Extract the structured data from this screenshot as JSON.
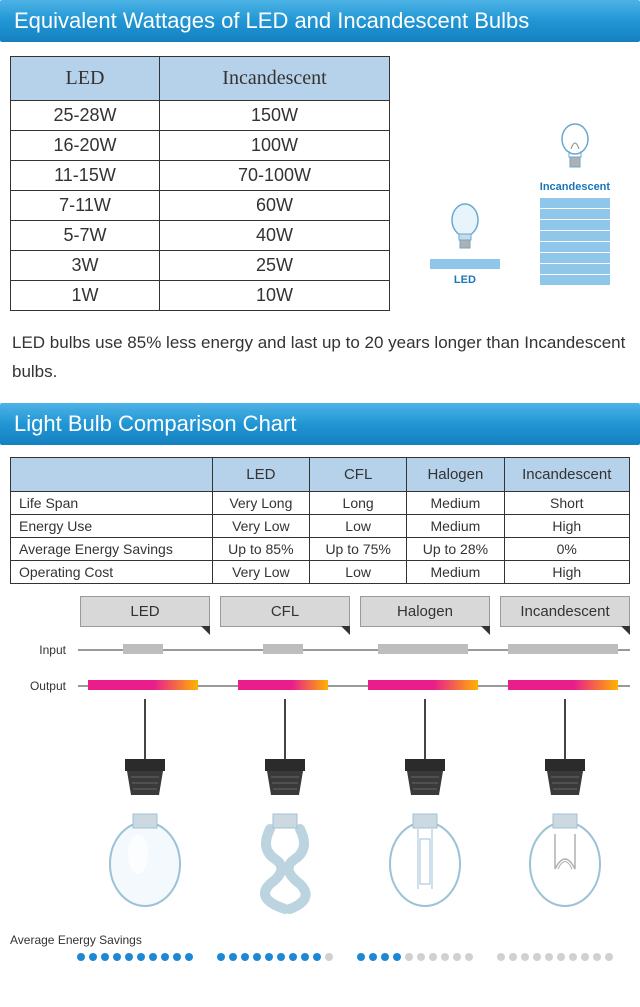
{
  "colors": {
    "header_gradient": [
      "#4db3e6",
      "#2196d4",
      "#1580c0"
    ],
    "th_bg": "#b6d2ea",
    "bar_seg": "#8fc7eb",
    "tab_bg": "#d8d8d8",
    "input_bar": "#bdbdbd",
    "output_gradient": [
      "#e91e8c",
      "#ffb300"
    ],
    "dot_on": "#1e88d4",
    "dot_off": "#d0d0d0"
  },
  "section1": {
    "title": "Equivalent Wattages of LED and Incandescent Bulbs",
    "table": {
      "columns": [
        "LED",
        "Incandescent"
      ],
      "rows": [
        [
          "25-28W",
          "150W"
        ],
        [
          "16-20W",
          "100W"
        ],
        [
          "11-15W",
          "70-100W"
        ],
        [
          "7-11W",
          "60W"
        ],
        [
          "5-7W",
          "40W"
        ],
        [
          "3W",
          "25W"
        ],
        [
          "1W",
          "10W"
        ]
      ]
    },
    "viz": {
      "led_label": "LED",
      "led_bars": 1,
      "incan_label": "Incandescent",
      "incan_bars": 8
    },
    "body_text": "LED bulbs use 85% less energy and last up to 20 years longer than Incandescent bulbs."
  },
  "section2": {
    "title": "Light Bulb Comparison Chart",
    "table": {
      "columns": [
        "",
        "LED",
        "CFL",
        "Halogen",
        "Incandescent"
      ],
      "rows": [
        [
          "Life Span",
          "Very Long",
          "Long",
          "Medium",
          "Short"
        ],
        [
          "Energy Use",
          "Very Low",
          "Low",
          "Medium",
          "High"
        ],
        [
          "Average Energy Savings",
          "Up to 85%",
          "Up to 75%",
          "Up to 28%",
          "0%"
        ],
        [
          "Operating Cost",
          "Very Low",
          "Low",
          "Medium",
          "High"
        ]
      ]
    }
  },
  "io": {
    "tabs": [
      "LED",
      "CFL",
      "Halogen",
      "Incandescent"
    ],
    "input_label": "Input",
    "output_label": "Output",
    "input_widths": [
      40,
      40,
      90,
      110
    ],
    "output_widths": [
      110,
      90,
      110,
      110
    ],
    "bulb_types": [
      "led",
      "cfl",
      "halogen",
      "incandescent"
    ]
  },
  "savings": {
    "label": "Average Energy Savings",
    "total_dots": 10,
    "filled": [
      10,
      9,
      4,
      0
    ]
  }
}
